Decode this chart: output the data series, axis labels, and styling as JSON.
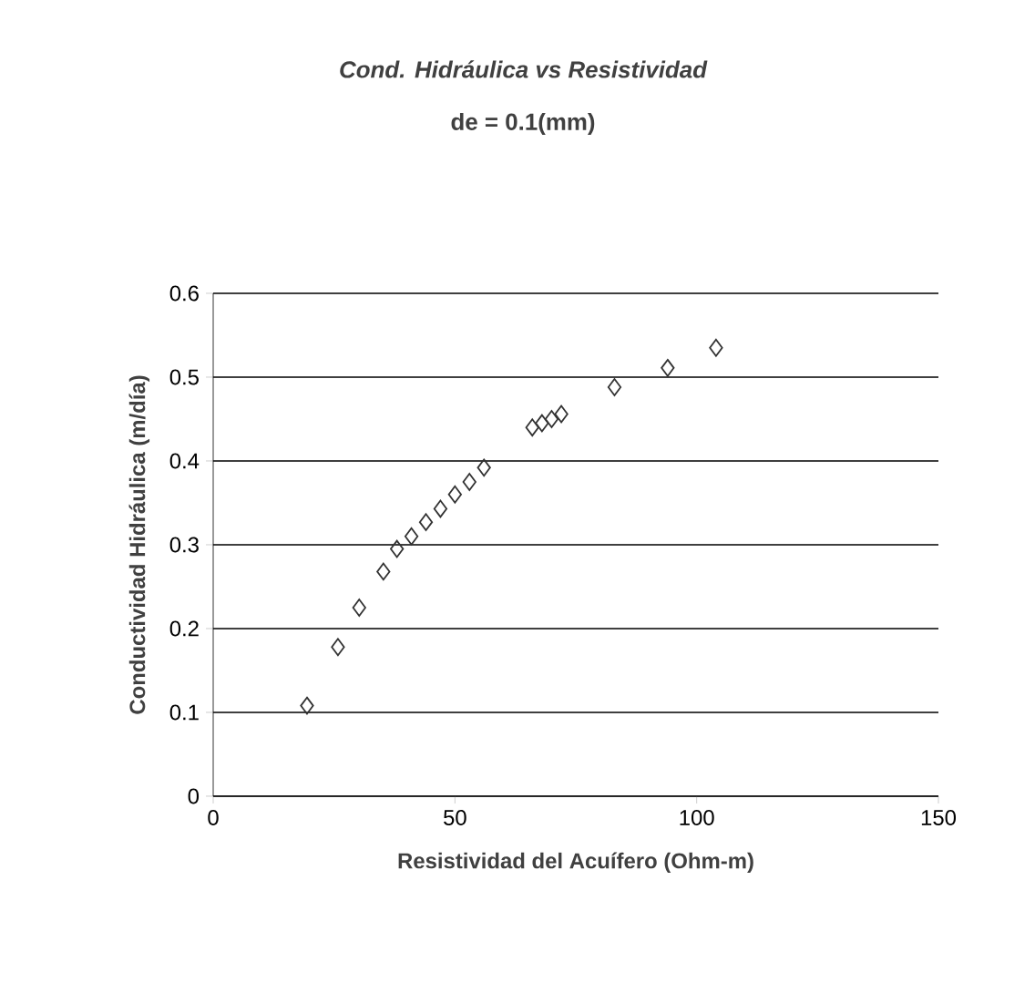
{
  "chart_data": {
    "type": "scatter",
    "title": "Cond. Hidráulica vs Resistividad",
    "subtitle": "de = 0.1(mm)",
    "xlabel": "Resistividad del Acuífero (Ohm-m)",
    "ylabel": "Conductividad Hidráulica (m/día)",
    "x": [
      19.4,
      25.8,
      30.2,
      35.2,
      38,
      41,
      44,
      47,
      50,
      53,
      56,
      66,
      68,
      70,
      72,
      83,
      94,
      104
    ],
    "values": [
      0.108,
      0.178,
      0.225,
      0.268,
      0.295,
      0.31,
      0.327,
      0.343,
      0.36,
      0.375,
      0.392,
      0.44,
      0.445,
      0.45,
      0.456,
      0.488,
      0.511,
      0.535
    ],
    "color": "#333333",
    "marker": "diamond",
    "xlim": [
      0,
      150
    ],
    "ylim": [
      0,
      0.6
    ],
    "xticks": [
      0,
      50,
      100,
      150
    ],
    "yticks": [
      0,
      0.1,
      0.2,
      0.3,
      0.4,
      0.5,
      0.6
    ],
    "grid": "y"
  }
}
